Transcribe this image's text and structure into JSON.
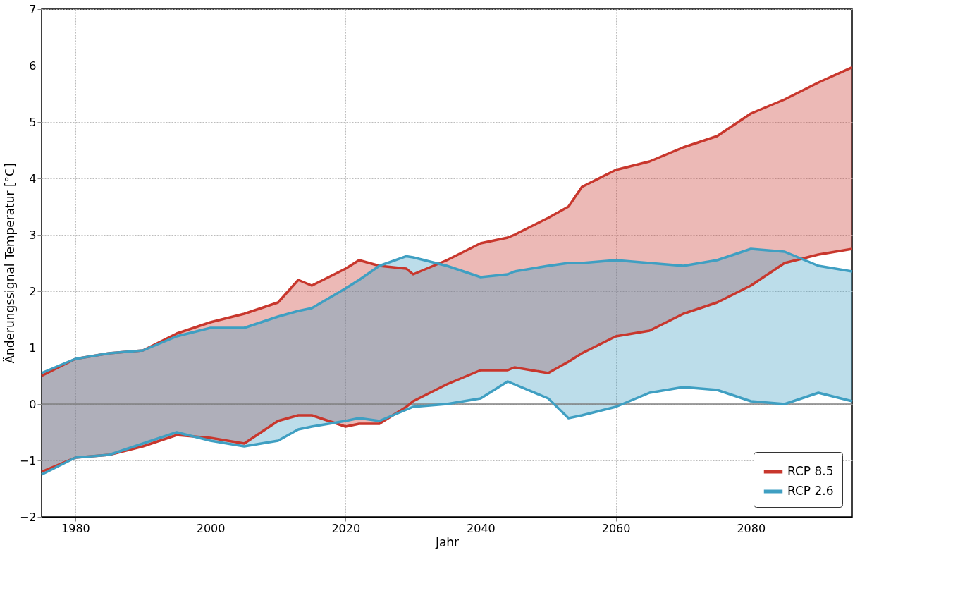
{
  "chart_data": {
    "type": "line",
    "xlabel": "Jahr",
    "ylabel": "Änderungssignal Temperatur [°C]",
    "x": [
      1975,
      1980,
      1985,
      1990,
      1995,
      2000,
      2005,
      2010,
      2013,
      2015,
      2020,
      2022,
      2025,
      2029,
      2030,
      2035,
      2040,
      2044,
      2045,
      2050,
      2053,
      2055,
      2060,
      2065,
      2070,
      2075,
      2080,
      2085,
      2090,
      2095
    ],
    "series": [
      {
        "name": "RCP 8.5",
        "color": "#c8372d",
        "values": [
          0.5,
          0.8,
          0.9,
          0.95,
          1.25,
          1.45,
          1.6,
          1.8,
          2.2,
          2.1,
          2.4,
          2.55,
          2.45,
          2.4,
          2.3,
          2.55,
          2.85,
          2.95,
          3.0,
          3.3,
          3.5,
          3.85,
          4.15,
          4.3,
          4.55,
          4.75,
          5.15,
          5.4,
          5.7,
          5.97
        ],
        "upper": [
          0.5,
          0.8,
          0.9,
          0.95,
          1.25,
          1.45,
          1.6,
          1.8,
          2.2,
          2.1,
          2.4,
          2.55,
          2.45,
          2.4,
          2.3,
          2.55,
          2.85,
          2.95,
          3.0,
          3.3,
          3.5,
          3.85,
          4.15,
          4.3,
          4.55,
          4.75,
          5.15,
          5.4,
          5.7,
          5.97
        ],
        "lower": [
          -1.2,
          -0.95,
          -0.9,
          -0.75,
          -0.55,
          -0.6,
          -0.7,
          -0.3,
          -0.2,
          -0.2,
          -0.4,
          -0.35,
          -0.35,
          -0.05,
          0.05,
          0.35,
          0.6,
          0.6,
          0.65,
          0.55,
          0.75,
          0.9,
          1.2,
          1.3,
          1.6,
          1.8,
          2.1,
          2.5,
          2.65,
          2.75
        ]
      },
      {
        "color": "#c8372d",
        "values": [
          -1.2,
          -0.95,
          -0.9,
          -0.75,
          -0.55,
          -0.6,
          -0.7,
          -0.3,
          -0.2,
          -0.2,
          -0.4,
          -0.35,
          -0.35,
          -0.05,
          0.05,
          0.35,
          0.6,
          0.6,
          0.65,
          0.55,
          0.75,
          0.9,
          1.2,
          1.3,
          1.6,
          1.8,
          2.1,
          2.5,
          2.65,
          2.75
        ]
      },
      {
        "name": "RCP 2.6",
        "color": "#3f9fc2",
        "values": [
          0.55,
          0.8,
          0.9,
          0.95,
          1.2,
          1.35,
          1.35,
          1.55,
          1.65,
          1.7,
          2.05,
          2.2,
          2.45,
          2.62,
          2.6,
          2.45,
          2.25,
          2.3,
          2.35,
          2.45,
          2.5,
          2.5,
          2.55,
          2.5,
          2.45,
          2.55,
          2.75,
          2.7,
          2.45,
          2.35
        ],
        "upper": [
          0.55,
          0.8,
          0.9,
          0.95,
          1.2,
          1.35,
          1.35,
          1.55,
          1.65,
          1.7,
          2.05,
          2.2,
          2.45,
          2.62,
          2.6,
          2.45,
          2.25,
          2.3,
          2.35,
          2.45,
          2.5,
          2.5,
          2.55,
          2.5,
          2.45,
          2.55,
          2.75,
          2.7,
          2.45,
          2.35
        ],
        "lower": [
          -1.25,
          -0.95,
          -0.9,
          -0.7,
          -0.5,
          -0.65,
          -0.75,
          -0.65,
          -0.45,
          -0.4,
          -0.3,
          -0.25,
          -0.3,
          -0.1,
          -0.05,
          0.0,
          0.1,
          0.4,
          0.35,
          0.1,
          -0.25,
          -0.2,
          -0.05,
          0.2,
          0.3,
          0.25,
          0.05,
          0.0,
          0.2,
          0.05
        ]
      },
      {
        "color": "#3f9fc2",
        "values": [
          -1.25,
          -0.95,
          -0.9,
          -0.7,
          -0.5,
          -0.65,
          -0.75,
          -0.65,
          -0.45,
          -0.4,
          -0.3,
          -0.25,
          -0.3,
          -0.1,
          -0.05,
          0.0,
          0.1,
          0.4,
          0.35,
          0.1,
          -0.25,
          -0.2,
          -0.05,
          0.2,
          0.3,
          0.25,
          0.05,
          0.0,
          0.2,
          0.05
        ]
      }
    ],
    "xlim": [
      1975,
      2095
    ],
    "xticks": [
      1980,
      2000,
      2020,
      2040,
      2060,
      2080
    ],
    "ylim": [
      -2,
      7
    ],
    "yticks": [
      {
        "value": -2,
        "label": "−2"
      },
      {
        "value": -1,
        "label": "−1"
      },
      0,
      1,
      2,
      3,
      4,
      5,
      6,
      7
    ],
    "ref_lines": [
      {
        "axis": "y",
        "value": 0,
        "color": "#808080"
      }
    ],
    "grid": true,
    "line_style": "solid",
    "legend": "bottom right"
  }
}
